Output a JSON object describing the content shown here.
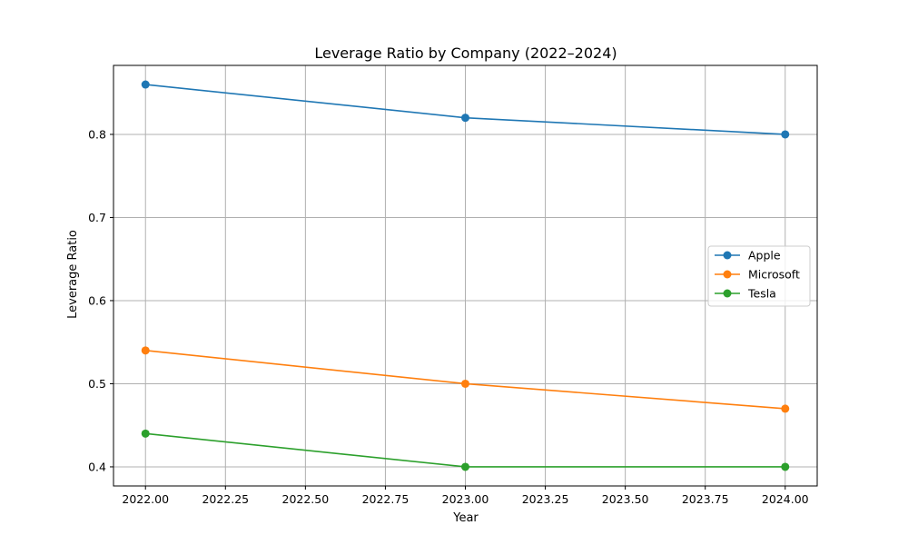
{
  "chart_data": {
    "type": "line",
    "title": "Leverage Ratio by Company (2022–2024)",
    "xlabel": "Year",
    "ylabel": "Leverage Ratio",
    "x": [
      2022,
      2023,
      2024
    ],
    "xlim": [
      2021.9,
      2024.1
    ],
    "ylim": [
      0.377,
      0.883
    ],
    "x_ticks": [
      2022.0,
      2022.25,
      2022.5,
      2022.75,
      2023.0,
      2023.25,
      2023.5,
      2023.75,
      2024.0
    ],
    "x_tick_labels": [
      "2022.00",
      "2022.25",
      "2022.50",
      "2022.75",
      "2023.00",
      "2023.25",
      "2023.50",
      "2023.75",
      "2024.00"
    ],
    "y_ticks": [
      0.4,
      0.5,
      0.6,
      0.7,
      0.8
    ],
    "y_tick_labels": [
      "0.4",
      "0.5",
      "0.6",
      "0.7",
      "0.8"
    ],
    "grid": true,
    "legend_position": "center-right",
    "series": [
      {
        "name": "Apple",
        "color": "#1f77b4",
        "values": [
          0.86,
          0.82,
          0.8
        ]
      },
      {
        "name": "Microsoft",
        "color": "#ff7f0e",
        "values": [
          0.54,
          0.5,
          0.47
        ]
      },
      {
        "name": "Tesla",
        "color": "#2ca02c",
        "values": [
          0.44,
          0.4,
          0.4
        ]
      }
    ]
  }
}
